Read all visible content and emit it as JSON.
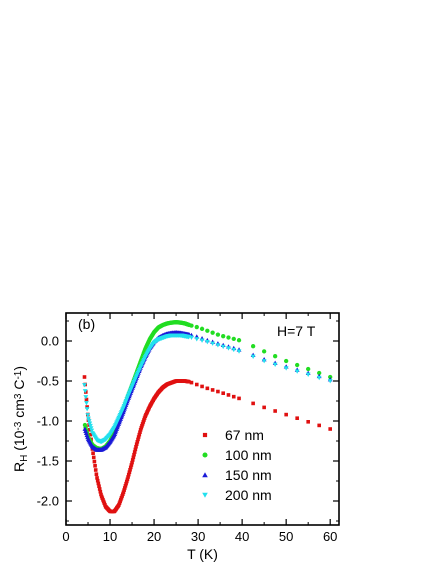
{
  "chart_data": {
    "type": "scatter",
    "panel_label": "(b)",
    "annotation": "H=7 T",
    "xlabel": "T (K)",
    "ylabel": {
      "base": "R",
      "sub": "H",
      "open": " (10",
      "sup1": "-3",
      "mid": " cm",
      "sup2": "3",
      "tail": " C",
      "sup3": "-1",
      "close": ")"
    },
    "xlim": [
      0,
      62
    ],
    "ylim": [
      -2.3,
      0.35
    ],
    "xticks": [
      0,
      10,
      20,
      30,
      40,
      50,
      60
    ],
    "yticks": [
      0.0,
      -0.5,
      -1.0,
      -1.5,
      -2.0
    ],
    "ytick_labels": [
      "0.0",
      "-0.5",
      "-1.0",
      "-1.5",
      "-2.0"
    ],
    "legend_placement": "lower-center",
    "series": [
      {
        "name": "67 nm",
        "color": "#e01010",
        "marker": "square",
        "anchors": [
          [
            4.2,
            -0.45
          ],
          [
            5,
            -0.95
          ],
          [
            6,
            -1.35
          ],
          [
            7,
            -1.7
          ],
          [
            8,
            -1.93
          ],
          [
            9,
            -2.07
          ],
          [
            10,
            -2.13
          ],
          [
            11,
            -2.13
          ],
          [
            12,
            -2.05
          ],
          [
            13,
            -1.9
          ],
          [
            14,
            -1.72
          ],
          [
            15,
            -1.52
          ],
          [
            16,
            -1.3
          ],
          [
            17,
            -1.1
          ],
          [
            18,
            -0.94
          ],
          [
            19,
            -0.82
          ],
          [
            20,
            -0.72
          ],
          [
            21,
            -0.64
          ],
          [
            22,
            -0.58
          ],
          [
            23,
            -0.54
          ],
          [
            24,
            -0.52
          ],
          [
            25,
            -0.5
          ],
          [
            26,
            -0.5
          ],
          [
            27,
            -0.5
          ],
          [
            28,
            -0.51
          ],
          [
            30,
            -0.55
          ],
          [
            32,
            -0.59
          ],
          [
            35,
            -0.64
          ],
          [
            40,
            -0.73
          ],
          [
            45,
            -0.83
          ],
          [
            50,
            -0.92
          ],
          [
            55,
            -1.01
          ],
          [
            60,
            -1.1
          ]
        ]
      },
      {
        "name": "100 nm",
        "color": "#22dd22",
        "marker": "circle",
        "anchors": [
          [
            4.3,
            -1.05
          ],
          [
            5,
            -1.2
          ],
          [
            6,
            -1.3
          ],
          [
            7,
            -1.34
          ],
          [
            8,
            -1.35
          ],
          [
            9,
            -1.32
          ],
          [
            10,
            -1.25
          ],
          [
            11,
            -1.15
          ],
          [
            12,
            -1.0
          ],
          [
            13,
            -0.85
          ],
          [
            14,
            -0.7
          ],
          [
            15,
            -0.55
          ],
          [
            16,
            -0.4
          ],
          [
            17,
            -0.25
          ],
          [
            18,
            -0.1
          ],
          [
            19,
            0.02
          ],
          [
            20,
            0.11
          ],
          [
            21,
            0.17
          ],
          [
            22,
            0.2
          ],
          [
            23,
            0.22
          ],
          [
            24,
            0.23
          ],
          [
            25,
            0.235
          ],
          [
            26,
            0.23
          ],
          [
            27,
            0.22
          ],
          [
            28,
            0.2
          ],
          [
            30,
            0.17
          ],
          [
            32,
            0.13
          ],
          [
            35,
            0.07
          ],
          [
            40,
            0.0
          ],
          [
            45,
            -0.13
          ],
          [
            50,
            -0.25
          ],
          [
            55,
            -0.35
          ],
          [
            60,
            -0.45
          ]
        ]
      },
      {
        "name": "150 nm",
        "color": "#1a1ad8",
        "marker": "triangle-up",
        "anchors": [
          [
            4.3,
            -1.1
          ],
          [
            5,
            -1.22
          ],
          [
            6,
            -1.32
          ],
          [
            7,
            -1.36
          ],
          [
            8,
            -1.36
          ],
          [
            9,
            -1.33
          ],
          [
            10,
            -1.26
          ],
          [
            11,
            -1.17
          ],
          [
            12,
            -1.03
          ],
          [
            13,
            -0.89
          ],
          [
            14,
            -0.74
          ],
          [
            15,
            -0.6
          ],
          [
            16,
            -0.46
          ],
          [
            17,
            -0.32
          ],
          [
            18,
            -0.2
          ],
          [
            19,
            -0.09
          ],
          [
            20,
            -0.01
          ],
          [
            21,
            0.04
          ],
          [
            22,
            0.07
          ],
          [
            23,
            0.09
          ],
          [
            24,
            0.1
          ],
          [
            25,
            0.105
          ],
          [
            26,
            0.1
          ],
          [
            27,
            0.09
          ],
          [
            28,
            0.08
          ],
          [
            30,
            0.05
          ],
          [
            32,
            0.01
          ],
          [
            35,
            -0.04
          ],
          [
            40,
            -0.12
          ],
          [
            45,
            -0.23
          ],
          [
            50,
            -0.32
          ],
          [
            55,
            -0.4
          ],
          [
            60,
            -0.48
          ]
        ]
      },
      {
        "name": "200 nm",
        "color": "#22e0ee",
        "marker": "triangle-down",
        "anchors": [
          [
            4.2,
            -0.55
          ],
          [
            5,
            -0.95
          ],
          [
            6,
            -1.15
          ],
          [
            7,
            -1.24
          ],
          [
            8,
            -1.26
          ],
          [
            9,
            -1.23
          ],
          [
            10,
            -1.17
          ],
          [
            11,
            -1.08
          ],
          [
            12,
            -0.96
          ],
          [
            13,
            -0.84
          ],
          [
            14,
            -0.7
          ],
          [
            15,
            -0.57
          ],
          [
            16,
            -0.44
          ],
          [
            17,
            -0.32
          ],
          [
            18,
            -0.2
          ],
          [
            19,
            -0.1
          ],
          [
            20,
            -0.02
          ],
          [
            21,
            0.02
          ],
          [
            22,
            0.04
          ],
          [
            23,
            0.06
          ],
          [
            24,
            0.07
          ],
          [
            25,
            0.07
          ],
          [
            26,
            0.07
          ],
          [
            27,
            0.06
          ],
          [
            28,
            0.05
          ],
          [
            30,
            0.02
          ],
          [
            32,
            -0.01
          ],
          [
            35,
            -0.06
          ],
          [
            40,
            -0.14
          ],
          [
            45,
            -0.25
          ],
          [
            50,
            -0.34
          ],
          [
            55,
            -0.42
          ],
          [
            60,
            -0.5
          ]
        ]
      }
    ]
  }
}
